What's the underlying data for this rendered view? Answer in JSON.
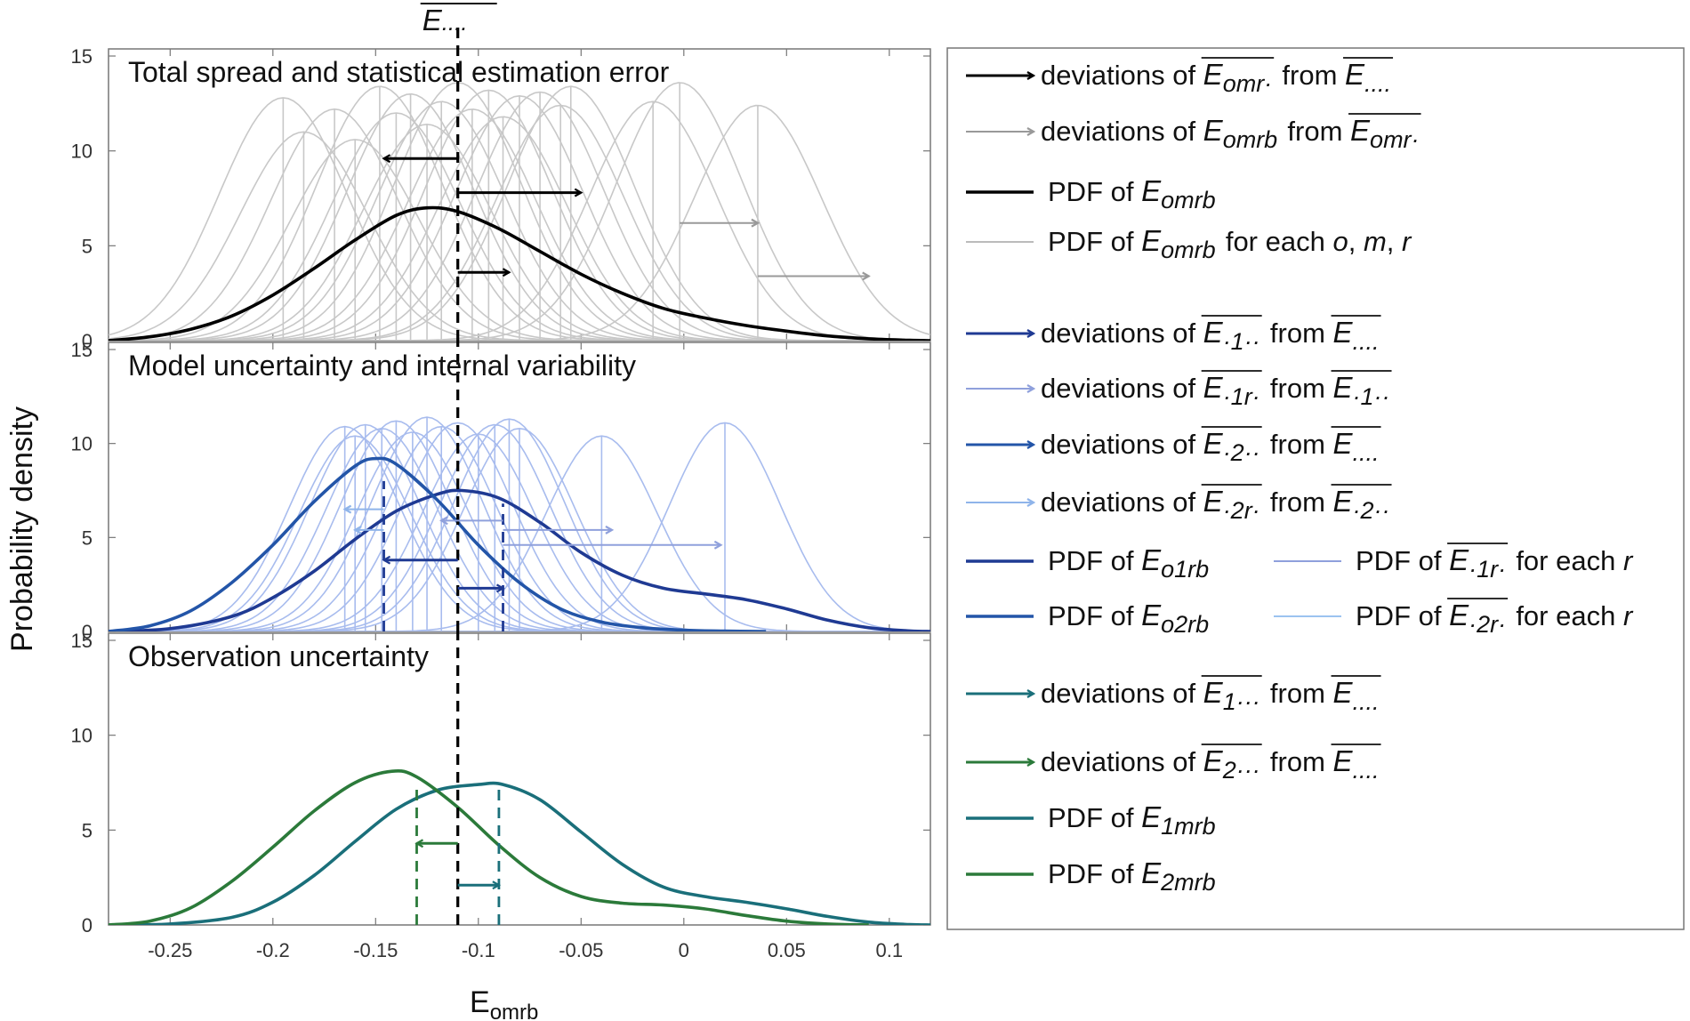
{
  "chart_data": {
    "type": "line",
    "top_marker": {
      "base": "E",
      "sub": "...."
    },
    "xlabel": {
      "base": "E",
      "sub": "omrb"
    },
    "ylabel": "Probability density",
    "xlim": [
      -0.28,
      0.12
    ],
    "xticks": [
      -0.25,
      -0.2,
      -0.15,
      -0.1,
      -0.05,
      0,
      0.05,
      0.1
    ],
    "xtick_labels": [
      "-0.25",
      "-0.2",
      "-0.15",
      "-0.1",
      "-0.05",
      "0",
      "0.05",
      "0.1"
    ],
    "grand_mean": -0.11,
    "panels": [
      {
        "title": "Total spread and statistical estimation error",
        "ylim": [
          0,
          15
        ],
        "yticks": [
          0,
          5,
          10,
          15
        ],
        "ytick_labels": [
          "0",
          "5",
          "10",
          "15"
        ],
        "thin_color": "#c8c8c8",
        "thin_gaussians": [
          {
            "mean": -0.195,
            "sd": 0.031,
            "peak": 12.8
          },
          {
            "mean": -0.185,
            "sd": 0.031,
            "peak": 11.0
          },
          {
            "mean": -0.17,
            "sd": 0.031,
            "peak": 12.2
          },
          {
            "mean": -0.16,
            "sd": 0.031,
            "peak": 10.6
          },
          {
            "mean": -0.148,
            "sd": 0.031,
            "peak": 13.4
          },
          {
            "mean": -0.14,
            "sd": 0.031,
            "peak": 12.0
          },
          {
            "mean": -0.133,
            "sd": 0.031,
            "peak": 13.0
          },
          {
            "mean": -0.125,
            "sd": 0.031,
            "peak": 11.4
          },
          {
            "mean": -0.118,
            "sd": 0.031,
            "peak": 12.6
          },
          {
            "mean": -0.11,
            "sd": 0.031,
            "peak": 13.6
          },
          {
            "mean": -0.103,
            "sd": 0.031,
            "peak": 12.2
          },
          {
            "mean": -0.095,
            "sd": 0.031,
            "peak": 13.2
          },
          {
            "mean": -0.088,
            "sd": 0.031,
            "peak": 11.8
          },
          {
            "mean": -0.08,
            "sd": 0.031,
            "peak": 12.9
          },
          {
            "mean": -0.07,
            "sd": 0.031,
            "peak": 13.1
          },
          {
            "mean": -0.06,
            "sd": 0.031,
            "peak": 12.4
          },
          {
            "mean": -0.055,
            "sd": 0.031,
            "peak": 13.4
          },
          {
            "mean": -0.015,
            "sd": 0.031,
            "peak": 12.6
          },
          {
            "mean": -0.002,
            "sd": 0.031,
            "peak": 13.6
          },
          {
            "mean": 0.036,
            "sd": 0.031,
            "peak": 12.4
          }
        ],
        "vlines": [
          -0.195,
          -0.185,
          -0.17,
          -0.16,
          -0.148,
          -0.14,
          -0.133,
          -0.125,
          -0.118,
          -0.103,
          -0.095,
          -0.088,
          -0.08,
          -0.07,
          -0.06,
          -0.055,
          -0.015,
          -0.002,
          0.036
        ],
        "series": [
          {
            "name": "PDF of Eomrb",
            "color": "#000000",
            "x": [
              -0.28,
              -0.26,
              -0.24,
              -0.22,
              -0.2,
              -0.18,
              -0.16,
              -0.14,
              -0.125,
              -0.11,
              -0.09,
              -0.07,
              -0.05,
              -0.03,
              -0.01,
              0.01,
              0.03,
              0.05,
              0.07,
              0.09,
              0.11,
              0.12
            ],
            "y": [
              0.0,
              0.2,
              0.6,
              1.3,
              2.4,
              3.8,
              5.3,
              6.6,
              7.0,
              6.8,
              5.9,
              4.7,
              3.5,
              2.5,
              1.7,
              1.2,
              0.8,
              0.5,
              0.25,
              0.1,
              0.02,
              0.0
            ]
          }
        ],
        "arrows": [
          {
            "from": -0.11,
            "to": -0.146,
            "y": 9.6,
            "color": "#000000",
            "width": 3
          },
          {
            "from": -0.11,
            "to": -0.05,
            "y": 7.8,
            "color": "#000000",
            "width": 3
          },
          {
            "from": -0.11,
            "to": -0.085,
            "y": 3.6,
            "color": "#000000",
            "width": 3
          },
          {
            "from": -0.002,
            "to": 0.036,
            "y": 6.2,
            "color": "#999999",
            "width": 2
          },
          {
            "from": 0.036,
            "to": 0.09,
            "y": 3.4,
            "color": "#999999",
            "width": 2
          }
        ],
        "dashed": [
          {
            "x": -0.11,
            "y0": 0,
            "y1": 15.5,
            "color": "#000000"
          }
        ]
      },
      {
        "title": "Model uncertainty and internal variability",
        "ylim": [
          0,
          15
        ],
        "yticks": [
          0,
          5,
          10,
          15
        ],
        "ytick_labels": [
          "0",
          "5",
          "10",
          "15"
        ],
        "thin_color": "#a8bcee",
        "thin_gaussians": [
          {
            "mean": -0.165,
            "sd": 0.027,
            "peak": 10.9
          },
          {
            "mean": -0.16,
            "sd": 0.027,
            "peak": 10.4
          },
          {
            "mean": -0.155,
            "sd": 0.027,
            "peak": 11.0
          },
          {
            "mean": -0.147,
            "sd": 0.027,
            "peak": 10.8
          },
          {
            "mean": -0.14,
            "sd": 0.027,
            "peak": 11.2
          },
          {
            "mean": -0.132,
            "sd": 0.027,
            "peak": 10.6
          },
          {
            "mean": -0.125,
            "sd": 0.027,
            "peak": 11.4
          },
          {
            "mean": -0.118,
            "sd": 0.027,
            "peak": 10.9
          },
          {
            "mean": -0.11,
            "sd": 0.027,
            "peak": 11.1
          },
          {
            "mean": -0.1,
            "sd": 0.027,
            "peak": 10.5
          },
          {
            "mean": -0.092,
            "sd": 0.027,
            "peak": 11.0
          },
          {
            "mean": -0.085,
            "sd": 0.027,
            "peak": 11.3
          },
          {
            "mean": -0.08,
            "sd": 0.027,
            "peak": 10.8
          },
          {
            "mean": -0.04,
            "sd": 0.027,
            "peak": 10.4
          },
          {
            "mean": 0.02,
            "sd": 0.027,
            "peak": 11.1
          }
        ],
        "vlines": [
          -0.165,
          -0.16,
          -0.155,
          -0.147,
          -0.14,
          -0.132,
          -0.125,
          -0.118,
          -0.1,
          -0.092,
          -0.085,
          -0.08,
          -0.04,
          0.02
        ],
        "series": [
          {
            "name": "PDF of Eo1rb",
            "color": "#1f3a93",
            "x": [
              -0.28,
              -0.25,
              -0.22,
              -0.2,
              -0.18,
              -0.16,
              -0.14,
              -0.12,
              -0.108,
              -0.09,
              -0.07,
              -0.05,
              -0.03,
              -0.01,
              0.01,
              0.03,
              0.05,
              0.07,
              0.09,
              0.11,
              0.12
            ],
            "y": [
              0.0,
              0.15,
              0.8,
              1.8,
              3.2,
              4.9,
              6.4,
              7.3,
              7.5,
              7.1,
              5.8,
              4.2,
              3.0,
              2.3,
              2.0,
              1.7,
              1.2,
              0.6,
              0.2,
              0.03,
              0.0
            ]
          },
          {
            "name": "PDF of Eo2rb",
            "color": "#2355a8",
            "x": [
              -0.28,
              -0.26,
              -0.24,
              -0.22,
              -0.2,
              -0.18,
              -0.16,
              -0.15,
              -0.14,
              -0.12,
              -0.1,
              -0.08,
              -0.06,
              -0.04,
              -0.02,
              0.0,
              0.02,
              0.04
            ],
            "y": [
              0.0,
              0.3,
              1.1,
              2.6,
              4.6,
              6.9,
              8.8,
              9.2,
              8.9,
              7.0,
              4.6,
              2.6,
              1.2,
              0.5,
              0.2,
              0.07,
              0.02,
              0.0
            ]
          }
        ],
        "arrows": [
          {
            "from": -0.11,
            "to": -0.146,
            "y": 3.8,
            "color": "#1f3a93",
            "width": 3
          },
          {
            "from": -0.11,
            "to": -0.088,
            "y": 2.3,
            "color": "#1f3a93",
            "width": 3
          },
          {
            "from": -0.146,
            "to": -0.165,
            "y": 6.5,
            "color": "#8fb4ea",
            "width": 2
          },
          {
            "from": -0.146,
            "to": -0.16,
            "y": 5.4,
            "color": "#8fb4ea",
            "width": 2
          },
          {
            "from": -0.088,
            "to": -0.118,
            "y": 5.9,
            "color": "#8fa0dc",
            "width": 2
          },
          {
            "from": -0.088,
            "to": -0.035,
            "y": 5.4,
            "color": "#8fa0dc",
            "width": 2
          },
          {
            "from": -0.088,
            "to": 0.018,
            "y": 4.6,
            "color": "#8fa0dc",
            "width": 2
          }
        ],
        "dashed": [
          {
            "x": -0.11,
            "y0": 0,
            "y1": 15.5,
            "color": "#000000"
          },
          {
            "x": -0.146,
            "y0": 0,
            "y1": 8.0,
            "color": "#1f3a93"
          },
          {
            "x": -0.088,
            "y0": 0,
            "y1": 6.8,
            "color": "#1f3a93"
          }
        ]
      },
      {
        "title": "Observation uncertainty",
        "ylim": [
          0,
          15
        ],
        "yticks": [
          0,
          5,
          10,
          15
        ],
        "ytick_labels": [
          "0",
          "5",
          "10",
          "15"
        ],
        "thin_color": "#cccccc",
        "thin_gaussians": [],
        "vlines": [],
        "series": [
          {
            "name": "PDF of E1mrb",
            "color": "#1a6f7a",
            "x": [
              -0.28,
              -0.25,
              -0.22,
              -0.2,
              -0.18,
              -0.16,
              -0.14,
              -0.12,
              -0.1,
              -0.088,
              -0.07,
              -0.05,
              -0.03,
              -0.01,
              0.01,
              0.03,
              0.05,
              0.07,
              0.09,
              0.11,
              0.12
            ],
            "y": [
              0.0,
              0.05,
              0.4,
              1.2,
              2.6,
              4.4,
              6.1,
              7.1,
              7.4,
              7.4,
              6.6,
              4.9,
              3.2,
              2.0,
              1.5,
              1.2,
              0.85,
              0.45,
              0.15,
              0.02,
              0.0
            ]
          },
          {
            "name": "PDF of E2mrb",
            "color": "#2b7a3a",
            "x": [
              -0.28,
              -0.26,
              -0.24,
              -0.22,
              -0.2,
              -0.18,
              -0.16,
              -0.142,
              -0.13,
              -0.11,
              -0.09,
              -0.07,
              -0.05,
              -0.03,
              -0.01,
              0.01,
              0.03,
              0.05,
              0.07,
              0.09
            ],
            "y": [
              0.0,
              0.2,
              0.9,
              2.3,
              4.1,
              6.0,
              7.5,
              8.1,
              7.8,
              6.2,
              4.2,
              2.5,
              1.5,
              1.15,
              1.05,
              0.85,
              0.5,
              0.2,
              0.05,
              0.0
            ]
          }
        ],
        "arrows": [
          {
            "from": -0.11,
            "to": -0.13,
            "y": 4.3,
            "color": "#2b7a3a",
            "width": 3
          },
          {
            "from": -0.11,
            "to": -0.09,
            "y": 2.1,
            "color": "#1a6f7a",
            "width": 3
          }
        ],
        "dashed": [
          {
            "x": -0.11,
            "y0": 0,
            "y1": 15.5,
            "color": "#000000"
          },
          {
            "x": -0.13,
            "y0": 0,
            "y1": 7.4,
            "color": "#2b7a3a"
          },
          {
            "x": -0.09,
            "y0": 0,
            "y1": 7.4,
            "color": "#1a6f7a"
          }
        ]
      }
    ],
    "legend": [
      {
        "kind": "arrow",
        "color": "#000000",
        "width": 3,
        "parts": [
          {
            "t": "deviations of "
          },
          {
            "s": "E",
            "sub": "omr·",
            "bar": true
          },
          {
            "t": " from "
          },
          {
            "s": "E",
            "sub": "....",
            "bar": true
          }
        ]
      },
      {
        "kind": "arrow",
        "color": "#999999",
        "width": 2,
        "parts": [
          {
            "t": "deviations of "
          },
          {
            "s": "E",
            "sub": "omrb"
          },
          {
            "t": " from "
          },
          {
            "s": "E",
            "sub": "omr·",
            "bar": true
          }
        ]
      },
      {
        "kind": "line",
        "color": "#000000",
        "width": 3.5,
        "parts": [
          {
            "t": "PDF of "
          },
          {
            "s": "E",
            "sub": "omrb"
          }
        ]
      },
      {
        "kind": "line",
        "color": "#bbbbbb",
        "width": 2,
        "parts": [
          {
            "t": "PDF of "
          },
          {
            "s": "E",
            "sub": "omrb"
          },
          {
            "t": " for each "
          },
          {
            "i": "o"
          },
          {
            "t": ", "
          },
          {
            "i": "m"
          },
          {
            "t": ", "
          },
          {
            "i": "r"
          }
        ]
      },
      {
        "kind": "gap"
      },
      {
        "kind": "arrow",
        "color": "#1f3a93",
        "width": 3,
        "parts": [
          {
            "t": "deviations of "
          },
          {
            "s": "E",
            "sub": "·1··",
            "bar": true
          },
          {
            "t": " from "
          },
          {
            "s": "E",
            "sub": "....",
            "bar": true
          }
        ]
      },
      {
        "kind": "arrow",
        "color": "#8fa0dc",
        "width": 2,
        "parts": [
          {
            "t": "deviations of "
          },
          {
            "s": "E",
            "sub": "·1r·",
            "bar": true
          },
          {
            "t": " from "
          },
          {
            "s": "E",
            "sub": "·1··",
            "bar": true
          }
        ]
      },
      {
        "kind": "arrow",
        "color": "#2355a8",
        "width": 3,
        "parts": [
          {
            "t": "deviations of "
          },
          {
            "s": "E",
            "sub": "·2··",
            "bar": true
          },
          {
            "t": " from "
          },
          {
            "s": "E",
            "sub": "....",
            "bar": true
          }
        ]
      },
      {
        "kind": "arrow",
        "color": "#8fb4ea",
        "width": 2,
        "parts": [
          {
            "t": "deviations of "
          },
          {
            "s": "E",
            "sub": "·2r·",
            "bar": true
          },
          {
            "t": " from "
          },
          {
            "s": "E",
            "sub": "·2··",
            "bar": true
          }
        ]
      },
      {
        "kind": "line2",
        "color": "#1f3a93",
        "width": 3.5,
        "parts": [
          {
            "t": "PDF of "
          },
          {
            "s": "E",
            "sub": "o1rb"
          }
        ],
        "color2": "#8fa0dc",
        "width2": 2,
        "parts2": [
          {
            "t": "PDF of "
          },
          {
            "s": "E",
            "sub": "·1r·",
            "bar": true
          },
          {
            "t": " for each "
          },
          {
            "i": "r"
          }
        ]
      },
      {
        "kind": "line2",
        "color": "#2355a8",
        "width": 3.5,
        "parts": [
          {
            "t": "PDF of "
          },
          {
            "s": "E",
            "sub": "o2rb"
          }
        ],
        "color2": "#9cc3f0",
        "width2": 2,
        "parts2": [
          {
            "t": "PDF of "
          },
          {
            "s": "E",
            "sub": "·2r·",
            "bar": true
          },
          {
            "t": " for each "
          },
          {
            "i": "r"
          }
        ]
      },
      {
        "kind": "gap"
      },
      {
        "kind": "arrow",
        "color": "#1a6f7a",
        "width": 3,
        "parts": [
          {
            "t": "deviations of "
          },
          {
            "s": "E",
            "sub": "1···",
            "bar": true
          },
          {
            "t": " from "
          },
          {
            "s": "E",
            "sub": "....",
            "bar": true
          }
        ]
      },
      {
        "kind": "arrow",
        "color": "#2b7a3a",
        "width": 3,
        "parts": [
          {
            "t": "deviations of "
          },
          {
            "s": "E",
            "sub": "2···",
            "bar": true
          },
          {
            "t": " from "
          },
          {
            "s": "E",
            "sub": "....",
            "bar": true
          }
        ]
      },
      {
        "kind": "line",
        "color": "#1a6f7a",
        "width": 3.5,
        "parts": [
          {
            "t": "PDF of "
          },
          {
            "s": "E",
            "sub": "1mrb"
          }
        ]
      },
      {
        "kind": "line",
        "color": "#2b7a3a",
        "width": 3.5,
        "parts": [
          {
            "t": "PDF of "
          },
          {
            "s": "E",
            "sub": "2mrb"
          }
        ]
      }
    ]
  }
}
